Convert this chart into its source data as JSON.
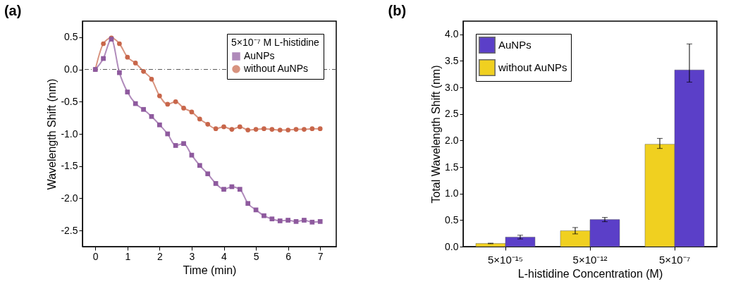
{
  "chart_data": [
    {
      "type": "line",
      "title": "(a)",
      "xlabel": "Time (min)",
      "ylabel": "Wavelength Shift (nm)",
      "legend_title": "5×10⁻⁷ M L-histidine",
      "legend": "top right",
      "grid": false,
      "x": [
        0,
        0.25,
        0.5,
        0.75,
        1,
        1.25,
        1.5,
        1.75,
        2,
        2.25,
        2.5,
        2.75,
        3,
        3.25,
        3.5,
        3.75,
        4,
        4.25,
        4.5,
        4.75,
        5,
        5.25,
        5.5,
        5.75,
        6,
        6.25,
        6.5,
        6.75,
        7
      ],
      "series": [
        {
          "name": "AuNPs",
          "color": "#8e5a9e",
          "marker": "square",
          "values": [
            0,
            0.17,
            0.47,
            -0.05,
            -0.35,
            -0.53,
            -0.62,
            -0.73,
            -0.86,
            -1.0,
            -1.18,
            -1.15,
            -1.33,
            -1.49,
            -1.62,
            -1.77,
            -1.86,
            -1.82,
            -1.86,
            -2.08,
            -2.18,
            -2.27,
            -2.32,
            -2.35,
            -2.34,
            -2.36,
            -2.34,
            -2.37,
            -2.36
          ]
        },
        {
          "name": "without AuNPs",
          "color": "#c8664a",
          "marker": "circle",
          "values": [
            0,
            0.4,
            0.49,
            0.4,
            0.19,
            0.1,
            -0.03,
            -0.15,
            -0.41,
            -0.54,
            -0.5,
            -0.6,
            -0.66,
            -0.77,
            -0.85,
            -0.92,
            -0.89,
            -0.93,
            -0.89,
            -0.94,
            -0.93,
            -0.92,
            -0.93,
            -0.94,
            -0.94,
            -0.93,
            -0.93,
            -0.92,
            -0.92
          ]
        }
      ],
      "xlim": [
        -0.4,
        7.5
      ],
      "xticks": [
        0,
        1,
        2,
        3,
        4,
        5,
        6,
        7
      ],
      "ylim": [
        -2.75,
        0.75
      ],
      "yticks": [
        -2.5,
        {
          "value": -2,
          "label": "-2.0"
        },
        -1.5,
        {
          "value": -1,
          "label": "-1.0"
        },
        -0.5,
        {
          "value": 0,
          "label": "0.0"
        },
        0.5
      ],
      "ref_lines": [
        {
          "axis": "y",
          "value": 0,
          "color": "#555555",
          "line_style": "dashed"
        }
      ]
    },
    {
      "type": "bar",
      "title": "(b)",
      "xlabel": "L-histidine Concentration (M)",
      "ylabel": "Total Wavelength Shift (nm)",
      "legend": "top left",
      "grid": false,
      "categories": [
        "5×10⁻¹⁵",
        "5×10⁻¹²",
        "5×10⁻⁷"
      ],
      "series": [
        {
          "name": "without AuNPs",
          "color": "#f0d020",
          "values": [
            0.06,
            0.3,
            1.93
          ],
          "errors": [
            0.005,
            0.06,
            [
              1.85,
              2.04
            ]
          ]
        },
        {
          "name": "AuNPs",
          "color": "#5b3fc8",
          "values": [
            0.18,
            0.51,
            3.33
          ],
          "errors": [
            0.035,
            0.04,
            [
              3.1,
              3.82
            ]
          ]
        }
      ],
      "ylim": [
        0,
        4.25
      ],
      "yticks": [
        {
          "value": 0,
          "label": "0.0"
        },
        {
          "value": 0.5,
          "label": "0.5"
        },
        {
          "value": 1,
          "label": "1.0"
        },
        {
          "value": 1.5,
          "label": "1.5"
        },
        {
          "value": 2,
          "label": "2.0"
        },
        {
          "value": 2.5,
          "label": "2.5"
        },
        {
          "value": 3,
          "label": "3.0"
        },
        {
          "value": 3.5,
          "label": "3.5"
        },
        {
          "value": 4,
          "label": "4.0"
        }
      ]
    }
  ]
}
